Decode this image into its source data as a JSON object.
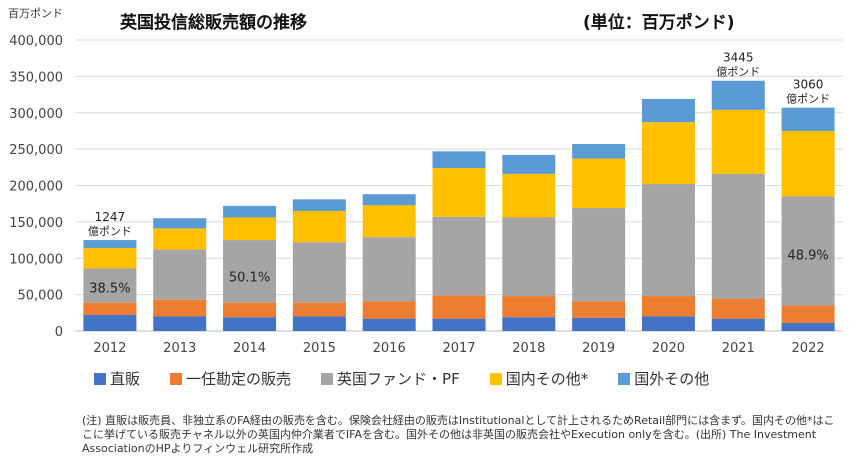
{
  "header": {
    "title": "英国投信総販売額の推移",
    "unit": "(単位：百万ポンド)",
    "axis_unit": "百万ポンド"
  },
  "chart_data": {
    "type": "bar",
    "stacked": true,
    "categories": [
      "2012",
      "2013",
      "2014",
      "2015",
      "2016",
      "2017",
      "2018",
      "2019",
      "2020",
      "2021",
      "2022"
    ],
    "series": [
      {
        "name": "直販",
        "color": "#4472C4",
        "values": [
          22000,
          20000,
          19000,
          20000,
          17000,
          17000,
          19000,
          18000,
          20000,
          17000,
          11000
        ]
      },
      {
        "name": "一任勘定の販売",
        "color": "#ED7D31",
        "values": [
          17000,
          23000,
          20000,
          19000,
          24000,
          32000,
          29000,
          23000,
          28000,
          27000,
          24000
        ]
      },
      {
        "name": "英国ファンド・PF",
        "color": "#A5A5A5",
        "values": [
          47000,
          69000,
          86000,
          83000,
          88000,
          108000,
          108000,
          128000,
          154000,
          172000,
          150000
        ]
      },
      {
        "name": "国内その他*",
        "color": "#FFC000",
        "values": [
          28000,
          29000,
          31000,
          43000,
          44000,
          67000,
          60000,
          68000,
          85000,
          88000,
          90000
        ]
      },
      {
        "name": "国外その他",
        "color": "#5B9BD5",
        "values": [
          11000,
          14000,
          16000,
          16000,
          15000,
          23000,
          26000,
          20000,
          32000,
          40000,
          32000
        ]
      }
    ],
    "ylim": [
      0,
      400000
    ],
    "yticks": [
      0,
      50000,
      100000,
      150000,
      200000,
      250000,
      300000,
      350000,
      400000
    ],
    "ytick_labels": [
      "0",
      "50,000",
      "100,000",
      "150,000",
      "200,000",
      "250,000",
      "300,000",
      "350,000",
      "400,000"
    ],
    "grid": true,
    "legend_position": "bottom",
    "annotations": {
      "totals": [
        {
          "index": 0,
          "value": "1247",
          "unit": "億ポンド"
        },
        {
          "index": 9,
          "value": "3445",
          "unit": "億ポンド"
        },
        {
          "index": 10,
          "value": "3060",
          "unit": "億ポンド"
        }
      ],
      "shares": [
        {
          "index": 0,
          "label": "38.5%",
          "y": 60000
        },
        {
          "index": 2,
          "label": "50.1%",
          "y": 75000
        },
        {
          "index": 10,
          "label": "48.9%",
          "y": 105000
        }
      ]
    }
  },
  "footnote": "(注) 直販は販売員、非独立系のFA経由の販売を含む。保険会社経由の販売はInstitutionalとして計上されるためRetail部門には含まず。国内その他*はここに挙げている販売チャネル以外の英国内仲介業者でIFAを含む。国外その他は非英国の販売会社やExecution onlyを含む。(出所) The Investment AssociationのHPよりフィンウェル研究所作成"
}
